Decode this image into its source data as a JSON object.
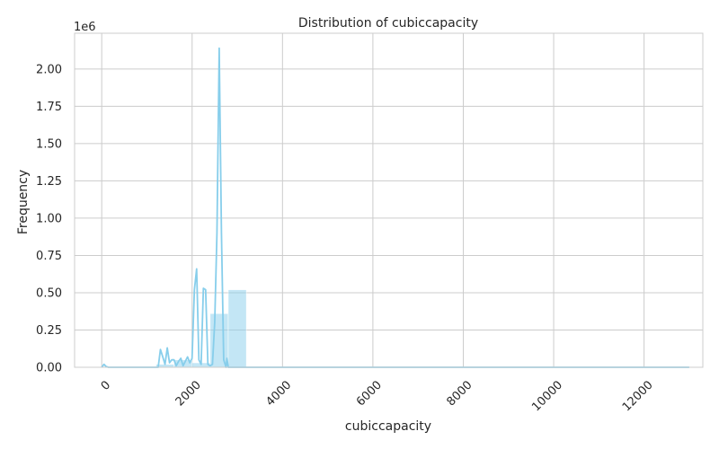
{
  "chart_data": {
    "type": "histogram",
    "title": "Distribution of cubiccapacity",
    "xlabel": "cubiccapacity",
    "ylabel": "Frequency",
    "y_offset_text": "1e6",
    "xlim": [
      -600,
      13300
    ],
    "ylim": [
      0,
      2.24
    ],
    "x_ticks": [
      0,
      2000,
      4000,
      6000,
      8000,
      10000,
      12000
    ],
    "x_tick_labels": [
      "0",
      "2000",
      "4000",
      "6000",
      "8000",
      "10000",
      "12000"
    ],
    "y_ticks": [
      0,
      0.25,
      0.5,
      0.75,
      1.0,
      1.25,
      1.5,
      1.75,
      2.0
    ],
    "y_tick_labels": [
      "0.00",
      "0.25",
      "0.50",
      "0.75",
      "1.00",
      "1.25",
      "1.50",
      "1.75",
      "2.00"
    ],
    "grid": true,
    "color": "#87ceeb",
    "bars": [
      {
        "x0": 1200,
        "x1": 1600,
        "value": 0.02
      },
      {
        "x0": 1600,
        "x1": 2000,
        "value": 0.05
      },
      {
        "x0": 2000,
        "x1": 2400,
        "value": 0.03
      },
      {
        "x0": 2400,
        "x1": 2800,
        "value": 0.36
      },
      {
        "x0": 2800,
        "x1": 3200,
        "value": 0.52
      }
    ],
    "kde": {
      "x": [
        0,
        50,
        100,
        150,
        200,
        1200,
        1250,
        1300,
        1350,
        1400,
        1450,
        1500,
        1550,
        1600,
        1650,
        1700,
        1750,
        1800,
        1850,
        1900,
        1950,
        2000,
        2050,
        2100,
        2150,
        2200,
        2250,
        2300,
        2350,
        2400,
        2450,
        2500,
        2550,
        2600,
        2650,
        2700,
        2730,
        2750,
        2770,
        2800,
        2850,
        2900,
        2950,
        3000,
        3050,
        3100,
        3200,
        3400,
        5000,
        8000,
        13000
      ],
      "y": [
        0.0,
        0.02,
        0.005,
        0.0,
        0.0,
        0.0,
        0.0,
        0.12,
        0.07,
        0.02,
        0.13,
        0.03,
        0.05,
        0.05,
        0.01,
        0.04,
        0.06,
        0.01,
        0.04,
        0.07,
        0.03,
        0.06,
        0.52,
        0.66,
        0.05,
        0.02,
        0.53,
        0.52,
        0.02,
        0.01,
        0.02,
        0.3,
        0.9,
        2.14,
        0.9,
        0.05,
        0.02,
        0.0,
        0.06,
        0.0,
        0.0,
        0.0,
        0.0,
        0.0,
        0.0,
        0.0,
        0.0,
        0.0,
        0.0,
        0.0,
        0.0
      ]
    }
  }
}
